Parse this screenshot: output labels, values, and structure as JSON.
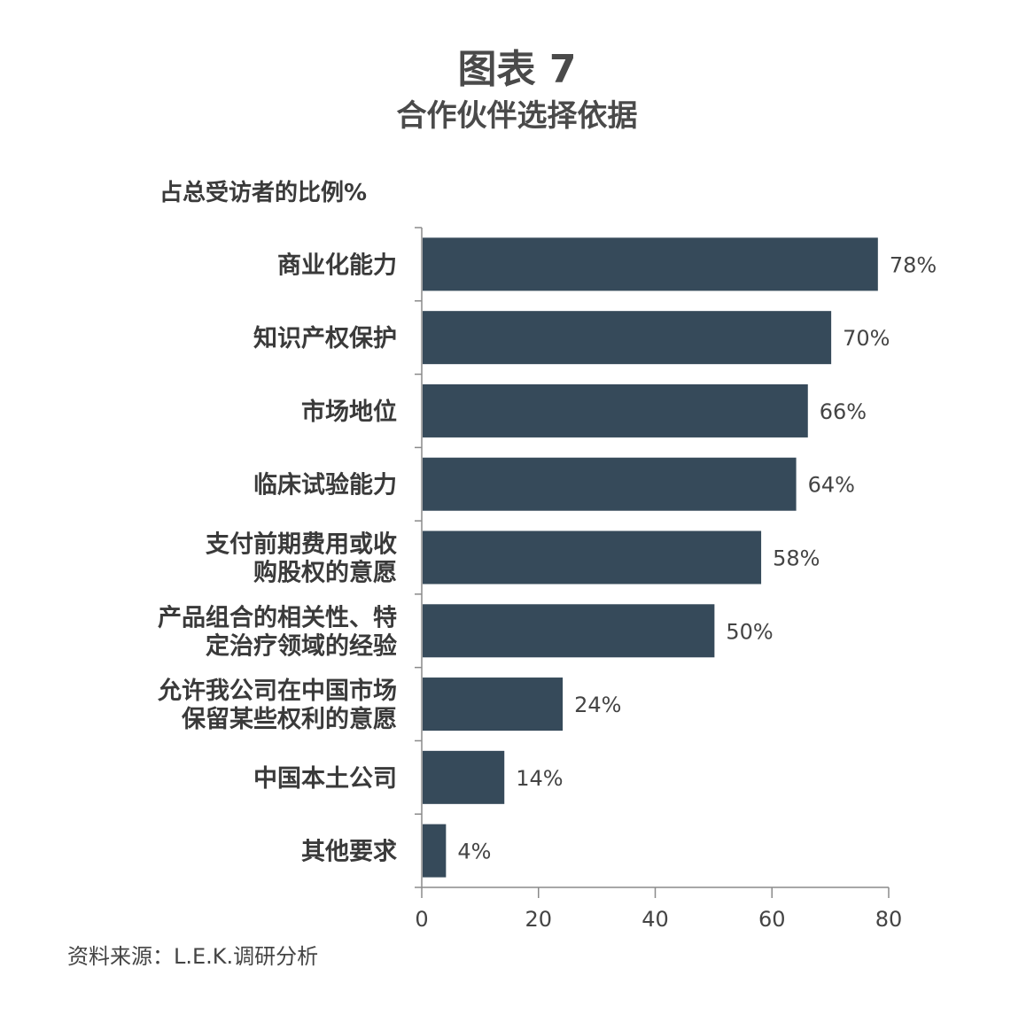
{
  "header": {
    "title": "图表 7",
    "subtitle": "合作伙伴选择依据"
  },
  "chart_data": {
    "type": "bar",
    "orientation": "horizontal",
    "ylabel": "占总受访者的比例%",
    "categories": [
      [
        "商业化能力"
      ],
      [
        "知识产权保护"
      ],
      [
        "市场地位"
      ],
      [
        "临床试验能力"
      ],
      [
        "支付前期费用或收",
        "购股权的意愿"
      ],
      [
        "产品组合的相关性、特",
        "定治疗领域的经验"
      ],
      [
        "允许我公司在中国市场",
        "保留某些权利的意愿"
      ],
      [
        "中国本土公司"
      ],
      [
        "其他要求"
      ]
    ],
    "values": [
      78,
      70,
      66,
      64,
      58,
      50,
      24,
      14,
      4
    ],
    "value_labels": [
      "78%",
      "70%",
      "66%",
      "64%",
      "58%",
      "50%",
      "24%",
      "14%",
      "4%"
    ],
    "xlim": [
      0,
      80
    ],
    "xticks": [
      0,
      20,
      40,
      60,
      80
    ],
    "bar_color": "#364a5a",
    "grid": false
  },
  "footer": {
    "source": "资料来源：L.E.K.调研分析"
  }
}
